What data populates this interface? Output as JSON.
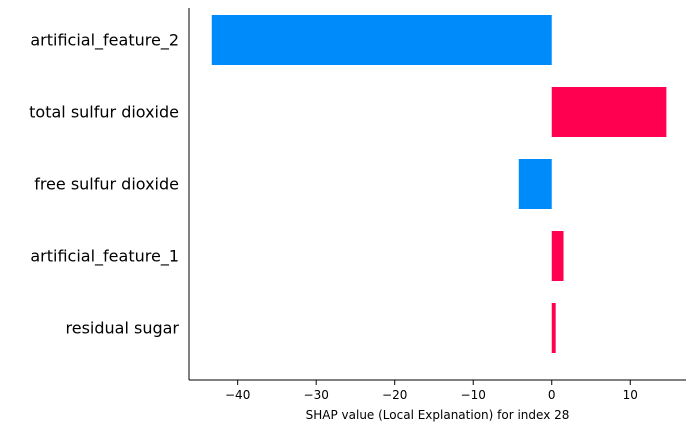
{
  "chart_data": {
    "type": "bar",
    "orientation": "horizontal",
    "title": "",
    "xlabel": "SHAP value (Local Explanation) for index 28",
    "ylabel": "",
    "grid": false,
    "legend": "none",
    "xlim": [
      -46.2,
      17.1
    ],
    "xticks": [
      -40,
      -30,
      -20,
      -10,
      0,
      10
    ],
    "xtick_labels": [
      "−40",
      "−30",
      "−20",
      "−10",
      "0",
      "10"
    ],
    "categories": [
      "artificial_feature_2",
      "total sulfur dioxide",
      "free sulfur dioxide",
      "artificial_feature_1",
      "residual sugar"
    ],
    "values": [
      -43.3,
      14.6,
      -4.2,
      1.5,
      0.5
    ],
    "colors": {
      "positive": "#ff0051",
      "negative": "#008bfb",
      "axis": "#000000"
    }
  }
}
